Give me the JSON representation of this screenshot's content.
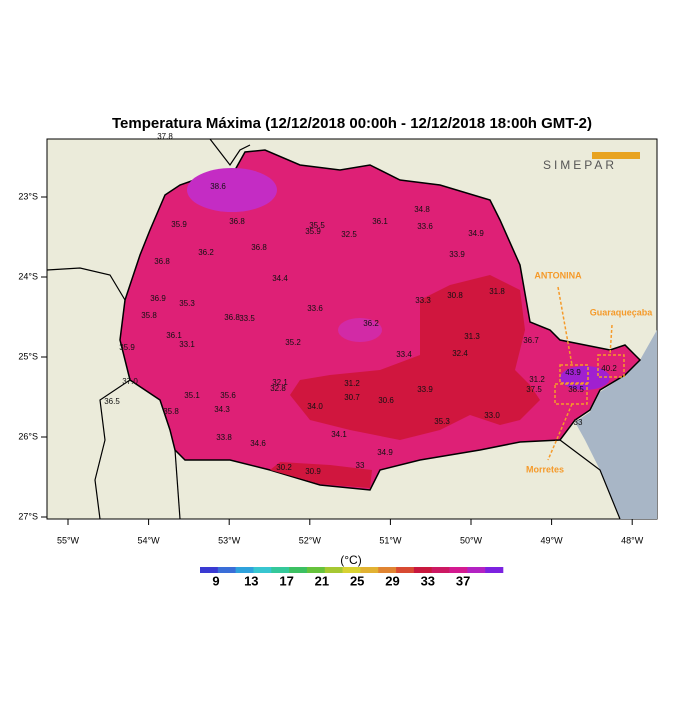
{
  "title": "Temperatura Máxima (12/12/2018 00:00h - 12/12/2018 18:00h GMT-2)",
  "logo": "SIMEPAR",
  "x_labels": [
    "55°W",
    "54°W",
    "53°W",
    "52°W",
    "51°W",
    "50°W",
    "49°W",
    "48°W"
  ],
  "y_labels": [
    "23°S",
    "24°S",
    "25°S",
    "26°S",
    "27°S"
  ],
  "places": [
    "ANTONINA",
    "Guaraqueçaba",
    "Morretes"
  ],
  "station_values": [
    "37.8",
    "38.6",
    "35.9",
    "36.8",
    "35.5",
    "35.9",
    "32.5",
    "36.1",
    "34.8",
    "33.6",
    "34.9",
    "36.8",
    "36.2",
    "36.8",
    "33.9",
    "34.4",
    "36.9",
    "35.3",
    "35.8",
    "36.8",
    "33.5",
    "33.6",
    "33.3",
    "30.8",
    "31.8",
    "36.2",
    "36.1",
    "33.1",
    "35.2",
    "31.3",
    "36.7",
    "35.9",
    "33.4",
    "32.4",
    "37.0",
    "32.1",
    "32.8",
    "31.2",
    "30.7",
    "30.6",
    "33.9",
    "31.2",
    "37.5",
    "43.9",
    "40.2",
    "35.1",
    "35.6",
    "34.3",
    "36.5",
    "35.8",
    "34.0",
    "35.3",
    "33.0",
    "33.8",
    "34.6",
    "34.1",
    "34.9",
    "33",
    "30.2",
    "30.9",
    "38.5",
    "33"
  ],
  "colorbar": {
    "unit": "(°C)",
    "labels": [
      9,
      13,
      17,
      21,
      25,
      29,
      33,
      37
    ],
    "colors": [
      "#3a3ad2",
      "#3a6ed8",
      "#2fa2dc",
      "#38c6d0",
      "#34c89a",
      "#3cc062",
      "#66c23c",
      "#a6c832",
      "#d8d232",
      "#e2b232",
      "#e08432",
      "#d84a32",
      "#c8183e",
      "#cc1862",
      "#d41a90",
      "#b222c2",
      "#7c22e0"
    ]
  }
}
